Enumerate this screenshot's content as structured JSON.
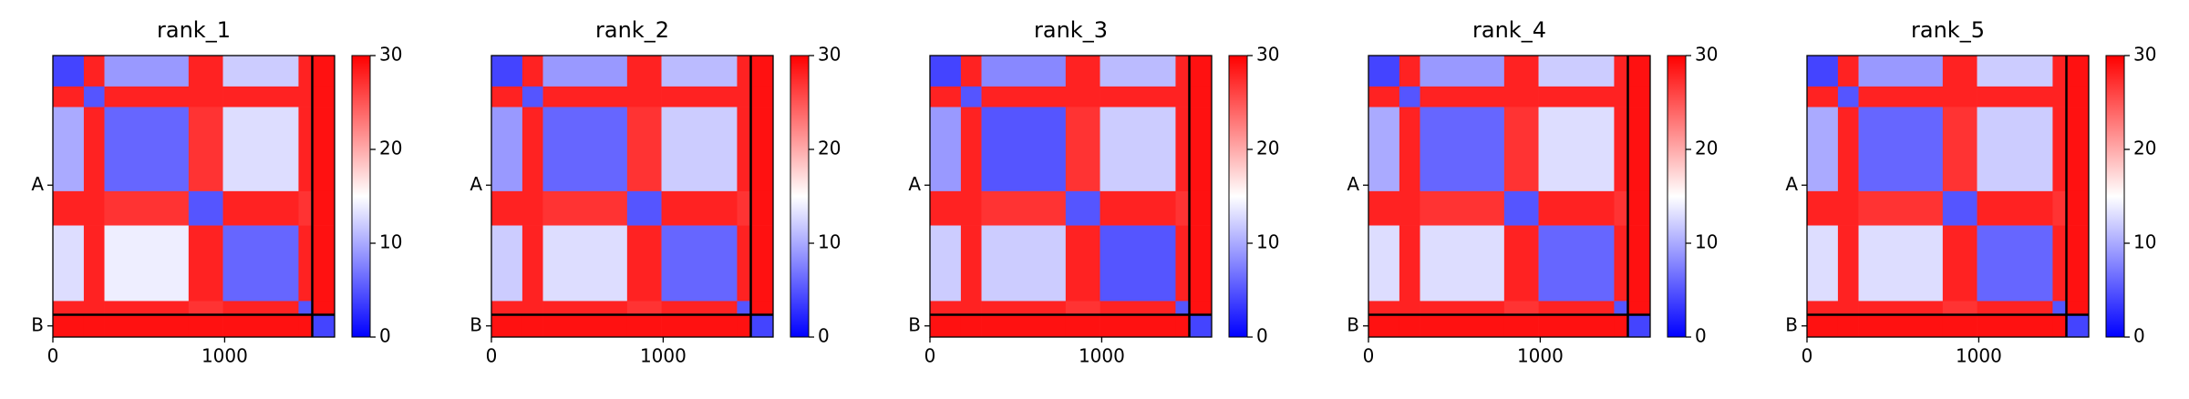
{
  "chart_data": [
    {
      "type": "heatmap",
      "title": "rank_1",
      "bins": [
        0,
        180,
        300,
        790,
        990,
        1430,
        1510,
        1640
      ],
      "values": [
        [
          4,
          28,
          9,
          28,
          12,
          28,
          29
        ],
        [
          28,
          5,
          28,
          28,
          28,
          28,
          29
        ],
        [
          10,
          28,
          6,
          27,
          13,
          28,
          29
        ],
        [
          28,
          28,
          27,
          5,
          28,
          27,
          29
        ],
        [
          13,
          28,
          14,
          28,
          6,
          28,
          29
        ],
        [
          28,
          28,
          28,
          27,
          28,
          5,
          29
        ],
        [
          29,
          29,
          29,
          29,
          29,
          29,
          4
        ]
      ],
      "xlim": [
        0,
        1640
      ],
      "ylim": [
        1640,
        0
      ],
      "xticks": [
        0,
        1000
      ],
      "yticks": [
        {
          "value": 755,
          "label": "A"
        },
        {
          "value": 1575,
          "label": "B"
        }
      ],
      "chain_breaks": [
        1510
      ],
      "clim": [
        0,
        30
      ],
      "cticks": [
        0,
        10,
        20,
        30
      ],
      "cmap": [
        "#0000ff",
        "#ffffff",
        "#ff0000"
      ]
    },
    {
      "type": "heatmap",
      "title": "rank_2",
      "bins": [
        0,
        180,
        300,
        790,
        990,
        1430,
        1510,
        1640
      ],
      "values": [
        [
          4,
          28,
          9,
          28,
          11,
          28,
          29
        ],
        [
          28,
          5,
          28,
          28,
          28,
          28,
          29
        ],
        [
          9,
          28,
          6,
          27,
          12,
          28,
          29
        ],
        [
          28,
          28,
          27,
          5,
          28,
          27,
          29
        ],
        [
          12,
          28,
          13,
          28,
          6,
          28,
          29
        ],
        [
          28,
          28,
          28,
          27,
          28,
          5,
          29
        ],
        [
          29,
          29,
          29,
          29,
          29,
          29,
          4
        ]
      ],
      "xlim": [
        0,
        1640
      ],
      "ylim": [
        1640,
        0
      ],
      "xticks": [
        0,
        1000
      ],
      "yticks": [
        {
          "value": 755,
          "label": "A"
        },
        {
          "value": 1575,
          "label": "B"
        }
      ],
      "chain_breaks": [
        1510
      ],
      "clim": [
        0,
        30
      ],
      "cticks": [
        0,
        10,
        20,
        30
      ],
      "cmap": [
        "#0000ff",
        "#ffffff",
        "#ff0000"
      ]
    },
    {
      "type": "heatmap",
      "title": "rank_3",
      "bins": [
        0,
        180,
        300,
        790,
        990,
        1430,
        1510,
        1640
      ],
      "values": [
        [
          4,
          28,
          8,
          28,
          11,
          28,
          29
        ],
        [
          28,
          5,
          28,
          28,
          28,
          28,
          29
        ],
        [
          9,
          28,
          5,
          27,
          12,
          28,
          29
        ],
        [
          28,
          28,
          27,
          5,
          28,
          27,
          29
        ],
        [
          12,
          28,
          12,
          28,
          5,
          28,
          29
        ],
        [
          28,
          28,
          28,
          27,
          28,
          5,
          29
        ],
        [
          29,
          29,
          29,
          29,
          29,
          29,
          4
        ]
      ],
      "xlim": [
        0,
        1640
      ],
      "ylim": [
        1640,
        0
      ],
      "xticks": [
        0,
        1000
      ],
      "yticks": [
        {
          "value": 755,
          "label": "A"
        },
        {
          "value": 1575,
          "label": "B"
        }
      ],
      "chain_breaks": [
        1510
      ],
      "clim": [
        0,
        30
      ],
      "cticks": [
        0,
        10,
        20,
        30
      ],
      "cmap": [
        "#0000ff",
        "#ffffff",
        "#ff0000"
      ]
    },
    {
      "type": "heatmap",
      "title": "rank_4",
      "bins": [
        0,
        180,
        300,
        790,
        990,
        1430,
        1510,
        1640
      ],
      "values": [
        [
          4,
          28,
          9,
          28,
          12,
          28,
          29
        ],
        [
          28,
          5,
          28,
          28,
          28,
          28,
          29
        ],
        [
          10,
          28,
          6,
          27,
          13,
          28,
          29
        ],
        [
          28,
          28,
          27,
          5,
          28,
          27,
          29
        ],
        [
          13,
          28,
          13,
          28,
          6,
          28,
          29
        ],
        [
          28,
          28,
          28,
          27,
          28,
          5,
          29
        ],
        [
          29,
          29,
          29,
          29,
          29,
          29,
          4
        ]
      ],
      "xlim": [
        0,
        1640
      ],
      "ylim": [
        1640,
        0
      ],
      "xticks": [
        0,
        1000
      ],
      "yticks": [
        {
          "value": 755,
          "label": "A"
        },
        {
          "value": 1575,
          "label": "B"
        }
      ],
      "chain_breaks": [
        1510
      ],
      "clim": [
        0,
        30
      ],
      "cticks": [
        0,
        10,
        20,
        30
      ],
      "cmap": [
        "#0000ff",
        "#ffffff",
        "#ff0000"
      ]
    },
    {
      "type": "heatmap",
      "title": "rank_5",
      "bins": [
        0,
        180,
        300,
        790,
        990,
        1430,
        1510,
        1640
      ],
      "values": [
        [
          4,
          28,
          9,
          28,
          12,
          28,
          29
        ],
        [
          28,
          5,
          28,
          28,
          28,
          28,
          29
        ],
        [
          10,
          28,
          6,
          27,
          12,
          28,
          29
        ],
        [
          28,
          28,
          27,
          5,
          28,
          27,
          29
        ],
        [
          13,
          28,
          13,
          28,
          6,
          28,
          29
        ],
        [
          28,
          28,
          28,
          27,
          28,
          5,
          29
        ],
        [
          29,
          29,
          29,
          29,
          29,
          29,
          4
        ]
      ],
      "xlim": [
        0,
        1640
      ],
      "ylim": [
        1640,
        0
      ],
      "xticks": [
        0,
        1000
      ],
      "yticks": [
        {
          "value": 755,
          "label": "A"
        },
        {
          "value": 1575,
          "label": "B"
        }
      ],
      "chain_breaks": [
        1510
      ],
      "clim": [
        0,
        30
      ],
      "cticks": [
        0,
        10,
        20,
        30
      ],
      "cmap": [
        "#0000ff",
        "#ffffff",
        "#ff0000"
      ]
    }
  ]
}
